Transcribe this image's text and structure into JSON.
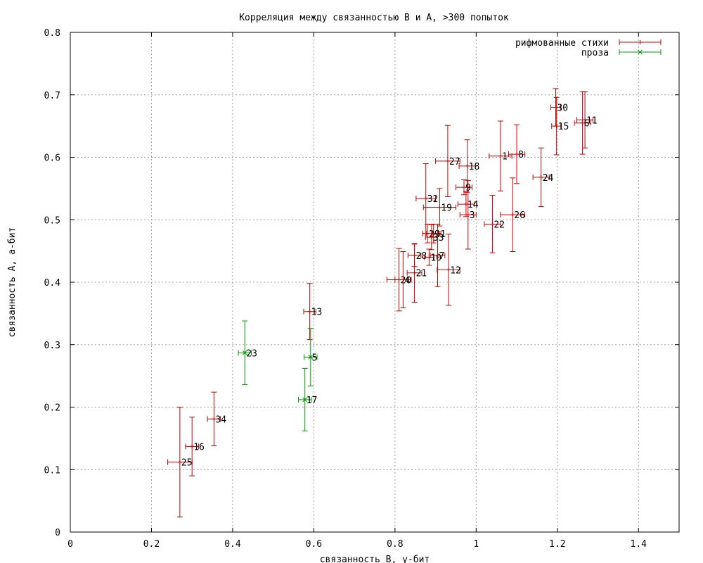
{
  "chart_data": {
    "type": "scatter",
    "title": "Корреляция между связанностью B и A, >300 попыток",
    "xlabel": "связанность B, у-бит",
    "ylabel": "связанность A, а-бит",
    "xlim": [
      0,
      1.5
    ],
    "ylim": [
      0,
      0.8
    ],
    "xticks": [
      "0",
      "0.2",
      "0.4",
      "0.6",
      "0.8",
      "1",
      "1.2",
      "1.4"
    ],
    "yticks": [
      "0",
      "0.1",
      "0.2",
      "0.3",
      "0.4",
      "0.5",
      "0.6",
      "0.7",
      "0.8"
    ],
    "grid": true,
    "legend_position": "top-right",
    "error_bars": true,
    "series": [
      {
        "name": "рифмованные стихи",
        "color": "#cc0000",
        "points": [
          {
            "label": "1",
            "x": 1.06,
            "y": 0.602,
            "xerr": 0.028,
            "yerr": 0.056
          },
          {
            "label": "11",
            "x": 1.268,
            "y": 0.66,
            "xerr": 0.02,
            "yerr": 0.045
          },
          {
            "label": "6",
            "x": 1.262,
            "y": 0.655,
            "xerr": 0.02,
            "yerr": 0.05
          },
          {
            "label": "30",
            "x": 1.196,
            "y": 0.68,
            "xerr": 0.012,
            "yerr": 0.03
          },
          {
            "label": "15",
            "x": 1.198,
            "y": 0.65,
            "xerr": 0.012,
            "yerr": 0.046
          },
          {
            "label": "8",
            "x": 1.1,
            "y": 0.605,
            "xerr": 0.02,
            "yerr": 0.047
          },
          {
            "label": "24",
            "x": 1.16,
            "y": 0.568,
            "xerr": 0.02,
            "yerr": 0.047
          },
          {
            "label": "27",
            "x": 0.93,
            "y": 0.594,
            "xerr": 0.03,
            "yerr": 0.057
          },
          {
            "label": "18",
            "x": 0.978,
            "y": 0.586,
            "xerr": 0.02,
            "yerr": 0.042
          },
          {
            "label": "9",
            "x": 0.97,
            "y": 0.552,
            "xerr": 0.02,
            "yerr": 0.012
          },
          {
            "label": "32",
            "x": 0.876,
            "y": 0.534,
            "xerr": 0.024,
            "yerr": 0.056
          },
          {
            "label": "19",
            "x": 0.91,
            "y": 0.52,
            "xerr": 0.04,
            "yerr": 0.03
          },
          {
            "label": "14",
            "x": 0.975,
            "y": 0.525,
            "xerr": 0.02,
            "yerr": 0.02
          },
          {
            "label": "3",
            "x": 0.98,
            "y": 0.508,
            "xerr": 0.02,
            "yerr": 0.055
          },
          {
            "label": "26",
            "x": 1.09,
            "y": 0.508,
            "xerr": 0.03,
            "yerr": 0.059
          },
          {
            "label": "22",
            "x": 1.04,
            "y": 0.493,
            "xerr": 0.02,
            "yerr": 0.046
          },
          {
            "label": "31",
            "x": 0.895,
            "y": 0.478,
            "xerr": 0.018,
            "yerr": 0.015
          },
          {
            "label": "29",
            "x": 0.88,
            "y": 0.478,
            "xerr": 0.012,
            "yerr": 0.015
          },
          {
            "label": "33",
            "x": 0.89,
            "y": 0.472,
            "xerr": 0.015,
            "yerr": 0.02
          },
          {
            "label": "28",
            "x": 0.848,
            "y": 0.443,
            "xerr": 0.016,
            "yerr": 0.018
          },
          {
            "label": "10",
            "x": 0.884,
            "y": 0.44,
            "xerr": 0.012,
            "yerr": 0.013
          },
          {
            "label": "7",
            "x": 0.905,
            "y": 0.443,
            "xerr": 0.018,
            "yerr": 0.05
          },
          {
            "label": "21",
            "x": 0.848,
            "y": 0.415,
            "xerr": 0.018,
            "yerr": 0.047
          },
          {
            "label": "12",
            "x": 0.932,
            "y": 0.42,
            "xerr": 0.028,
            "yerr": 0.057
          },
          {
            "label": "20",
            "x": 0.81,
            "y": 0.404,
            "xerr": 0.03,
            "yerr": 0.05
          },
          {
            "label": "4",
            "x": 0.82,
            "y": 0.404,
            "xerr": 0.02,
            "yerr": 0.045
          },
          {
            "label": "13",
            "x": 0.59,
            "y": 0.353,
            "xerr": 0.015,
            "yerr": 0.045
          },
          {
            "label": "34",
            "x": 0.354,
            "y": 0.181,
            "xerr": 0.016,
            "yerr": 0.043
          },
          {
            "label": "16",
            "x": 0.3,
            "y": 0.137,
            "xerr": 0.016,
            "yerr": 0.047
          },
          {
            "label": "25",
            "x": 0.27,
            "y": 0.112,
            "xerr": 0.03,
            "yerr": 0.088
          }
        ]
      },
      {
        "name": "проза",
        "color": "#00a000",
        "points": [
          {
            "label": "23",
            "x": 0.43,
            "y": 0.287,
            "xerr": 0.016,
            "yerr": 0.051
          },
          {
            "label": "5",
            "x": 0.592,
            "y": 0.28,
            "xerr": 0.016,
            "yerr": 0.046
          },
          {
            "label": "17",
            "x": 0.578,
            "y": 0.212,
            "xerr": 0.016,
            "yerr": 0.05
          }
        ]
      }
    ]
  }
}
